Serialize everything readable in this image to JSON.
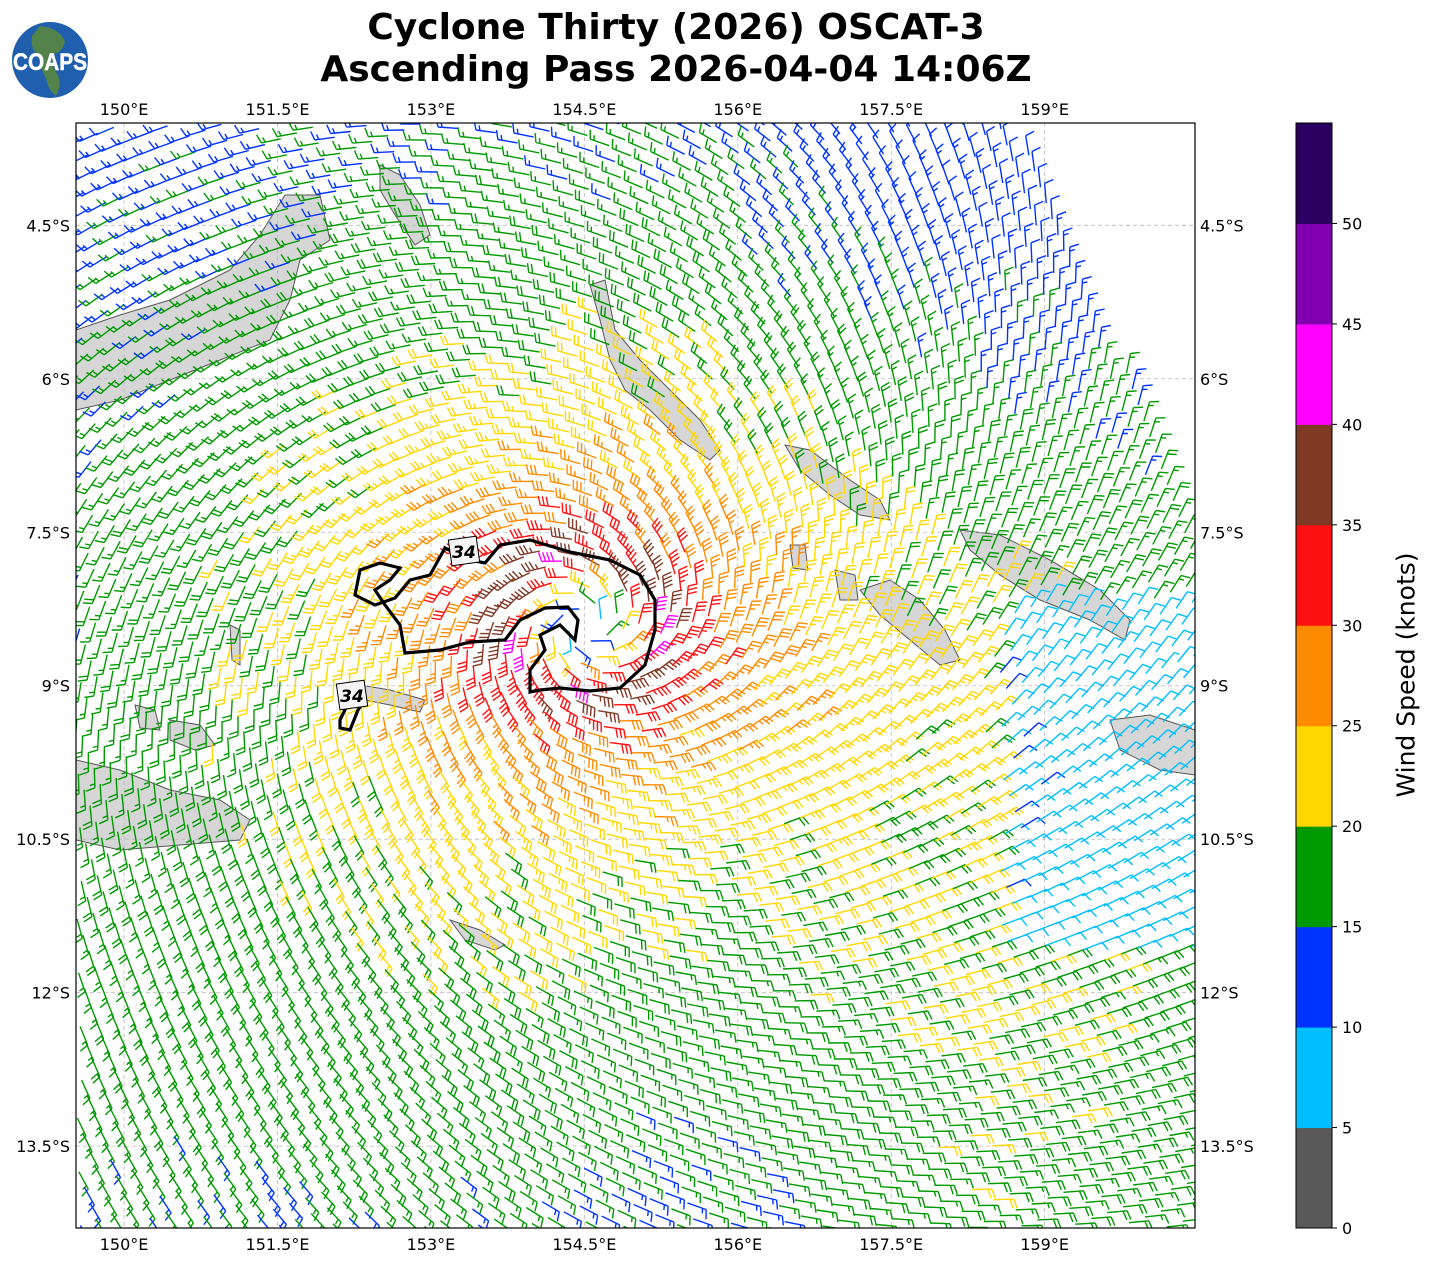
{
  "title": {
    "line1": "Cyclone Thirty (2026) OSCAT-3",
    "line2": "Ascending Pass 2026-04-04 14:06Z"
  },
  "logo": {
    "text": "COAPS"
  },
  "chart_data": {
    "type": "map-wind-barbs",
    "lon_ticks": [
      "150°E",
      "151.5°E",
      "153°E",
      "154.5°E",
      "156°E",
      "157.5°E",
      "159°E"
    ],
    "lon_values": [
      150,
      151.5,
      153,
      154.5,
      156,
      157.5,
      159
    ],
    "lat_ticks": [
      "4.5°S",
      "6°S",
      "7.5°S",
      "9°S",
      "10.5°S",
      "12°S",
      "13.5°S"
    ],
    "lat_values": [
      -4.5,
      -6,
      -7.5,
      -9,
      -10.5,
      -12,
      -13.5
    ],
    "lon_range": [
      149.53,
      160.47
    ],
    "lat_range": [
      -14.3,
      -3.5
    ],
    "grid": true,
    "contour_labels": [
      "34",
      "34"
    ],
    "colorbar": {
      "label": "Wind Speed (knots)",
      "ticks": [
        "0",
        "5",
        "10",
        "15",
        "20",
        "25",
        "30",
        "35",
        "40",
        "45",
        "50"
      ],
      "bins": [
        0,
        5,
        10,
        15,
        20,
        25,
        30,
        35,
        40,
        45,
        50,
        55
      ],
      "colors": [
        "#595959",
        "#00bfff",
        "#0033ff",
        "#009900",
        "#ffd700",
        "#ff8c00",
        "#ff1010",
        "#7f3a26",
        "#ff00ff",
        "#8000b0",
        "#2b0060"
      ]
    }
  }
}
